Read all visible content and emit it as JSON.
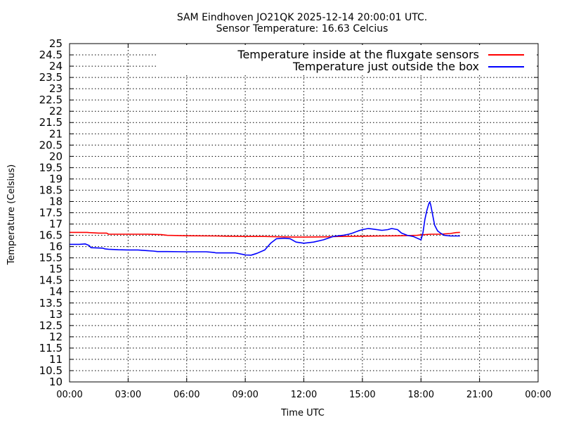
{
  "chart_data": {
    "type": "line",
    "title": "SAM Eindhoven JO21QK 2025-12-14 20:00:01 UTC.",
    "subtitle": "Sensor Temperature: 16.63 Celcius",
    "xlabel": "Time UTC",
    "ylabel": "Temperature (Celsius)",
    "xlim": [
      0,
      24
    ],
    "ylim": [
      10,
      25
    ],
    "grid": true,
    "legend_position": "top-right",
    "x_tick_values": [
      0,
      3,
      6,
      9,
      12,
      15,
      18,
      21,
      24
    ],
    "x_ticks": [
      "00:00",
      "03:00",
      "06:00",
      "09:00",
      "12:00",
      "15:00",
      "18:00",
      "21:00",
      "00:00"
    ],
    "y_tick_values": [
      10,
      10.5,
      11,
      11.5,
      12,
      12.5,
      13,
      13.5,
      14,
      14.5,
      15,
      15.5,
      16,
      16.5,
      17,
      17.5,
      18,
      18.5,
      19,
      19.5,
      20,
      20.5,
      21,
      21.5,
      22,
      22.5,
      23,
      23.5,
      24,
      24.5,
      25
    ],
    "y_ticks": [
      "10",
      "10.5",
      "11",
      "11.5",
      "12",
      "12.5",
      "13",
      "13.5",
      "14",
      "14.5",
      "15",
      "15.5",
      "16",
      "16.5",
      "17",
      "17.5",
      "18",
      "18.5",
      "19",
      "19.5",
      "20",
      "20.5",
      "21",
      "21.5",
      "22",
      "22.5",
      "23",
      "23.5",
      "24",
      "24.5",
      "25"
    ],
    "series": [
      {
        "name": "Temperature inside at the fluxgate sensors",
        "color": "#ff0000",
        "x": [
          0,
          0.5,
          0.9,
          1.0,
          1.5,
          1.9,
          2.0,
          3.0,
          4.0,
          4.7,
          5.0,
          6.0,
          7.5,
          8.0,
          9.0,
          10.0,
          11.0,
          11.5,
          12.0,
          13.0,
          13.8,
          14.0,
          15.0,
          16.0,
          17.0,
          17.8,
          18.0,
          18.5,
          19.0,
          19.5,
          19.8,
          20.0
        ],
        "y": [
          16.63,
          16.63,
          16.63,
          16.62,
          16.6,
          16.6,
          16.55,
          16.55,
          16.55,
          16.53,
          16.5,
          16.48,
          16.47,
          16.46,
          16.45,
          16.45,
          16.43,
          16.42,
          16.42,
          16.43,
          16.45,
          16.45,
          16.46,
          16.47,
          16.48,
          16.5,
          16.52,
          16.55,
          16.55,
          16.58,
          16.62,
          16.63
        ]
      },
      {
        "name": "Temperature just outside the box",
        "color": "#0000ff",
        "x": [
          0,
          0.5,
          0.8,
          1.0,
          1.1,
          1.7,
          1.8,
          2.0,
          2.5,
          3.0,
          3.5,
          4.0,
          4.3,
          4.5,
          5.0,
          6.0,
          7.0,
          7.4,
          7.5,
          8.0,
          8.5,
          8.9,
          9.0,
          9.3,
          9.6,
          10.0,
          10.3,
          10.6,
          11.0,
          11.3,
          11.6,
          12.0,
          12.5,
          13.0,
          13.5,
          14.0,
          14.3,
          14.5,
          14.8,
          15.0,
          15.3,
          15.5,
          16.0,
          16.3,
          16.5,
          16.8,
          17.0,
          17.3,
          17.6,
          18.0,
          18.1,
          18.2,
          18.3,
          18.4,
          18.45,
          18.5,
          18.6,
          18.7,
          18.85,
          19.0,
          19.2,
          19.5,
          20.0
        ],
        "y": [
          16.1,
          16.1,
          16.12,
          16.05,
          15.95,
          15.93,
          15.9,
          15.88,
          15.86,
          15.85,
          15.85,
          15.82,
          15.8,
          15.78,
          15.78,
          15.77,
          15.77,
          15.74,
          15.72,
          15.72,
          15.72,
          15.65,
          15.63,
          15.62,
          15.7,
          15.85,
          16.15,
          16.35,
          16.37,
          16.35,
          16.2,
          16.15,
          16.2,
          16.3,
          16.45,
          16.5,
          16.55,
          16.6,
          16.7,
          16.75,
          16.8,
          16.78,
          16.72,
          16.75,
          16.8,
          16.75,
          16.6,
          16.5,
          16.45,
          16.3,
          16.6,
          17.2,
          17.6,
          17.9,
          17.98,
          17.85,
          17.4,
          16.95,
          16.7,
          16.6,
          16.5,
          16.47,
          16.47
        ]
      }
    ]
  }
}
